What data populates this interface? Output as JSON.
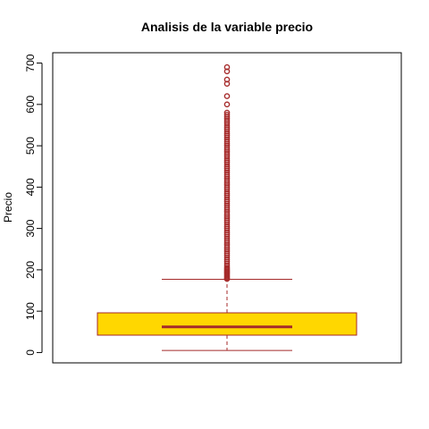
{
  "chart_data": {
    "type": "boxplot",
    "title": "Analisis de la variable precio",
    "xlabel": "",
    "ylabel": "Precio",
    "ylim": [
      -25,
      725
    ],
    "yticks": [
      0,
      100,
      200,
      300,
      400,
      500,
      600,
      700
    ],
    "grid": false,
    "legend": "none",
    "box": {
      "min": 5,
      "q1": 42,
      "median": 62,
      "q3": 96,
      "whisker_high": 177
    },
    "outliers": [
      178,
      181,
      184,
      187,
      190,
      193,
      196,
      199,
      202,
      205,
      210,
      215,
      220,
      225,
      230,
      235,
      240,
      245,
      250,
      255,
      260,
      265,
      270,
      275,
      280,
      285,
      290,
      295,
      300,
      305,
      310,
      315,
      320,
      325,
      330,
      335,
      340,
      345,
      350,
      355,
      360,
      365,
      370,
      375,
      380,
      385,
      390,
      395,
      400,
      405,
      410,
      415,
      420,
      425,
      430,
      435,
      440,
      445,
      450,
      455,
      460,
      465,
      470,
      475,
      480,
      485,
      490,
      495,
      500,
      505,
      510,
      515,
      520,
      525,
      530,
      535,
      540,
      545,
      550,
      555,
      560,
      565,
      570,
      575,
      580,
      600,
      620,
      650,
      660,
      680,
      690
    ],
    "colors": {
      "box_fill": "#FFD700",
      "box_border": "#A52A2A",
      "median": "#A52A2A",
      "whisker": "#A52A2A",
      "outlier": "#A52A2A",
      "frame": "#000000"
    }
  }
}
